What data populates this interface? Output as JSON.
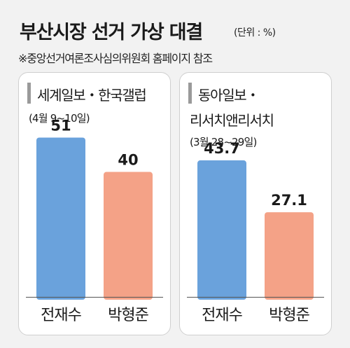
{
  "header": {
    "title": "부산시장 선거 가상 대결",
    "unit": "(단위 : %)",
    "source": "※중앙선거여론조사심의위원회 홈페이지 참조"
  },
  "colors": {
    "candidate_a": "#6aa2dc",
    "candidate_b": "#f4a287",
    "accent_bar": "#9a9a9a"
  },
  "chart_data": [
    {
      "type": "bar",
      "title": "세계일보・한국갤럽",
      "subtitle": "(4월 9~10일)",
      "categories": [
        "전재수",
        "박형준"
      ],
      "values": [
        51,
        40
      ],
      "value_labels": [
        "51",
        "40"
      ],
      "ylim": [
        0,
        65
      ]
    },
    {
      "type": "bar",
      "title_lines": [
        "동아일보・",
        "리서치앤리서치"
      ],
      "subtitle": "(3월 28~29일)",
      "categories": [
        "전재수",
        "박형준"
      ],
      "values": [
        43.7,
        27.1
      ],
      "value_labels": [
        "43.7",
        "27.1"
      ],
      "ylim": [
        0,
        65
      ]
    }
  ]
}
